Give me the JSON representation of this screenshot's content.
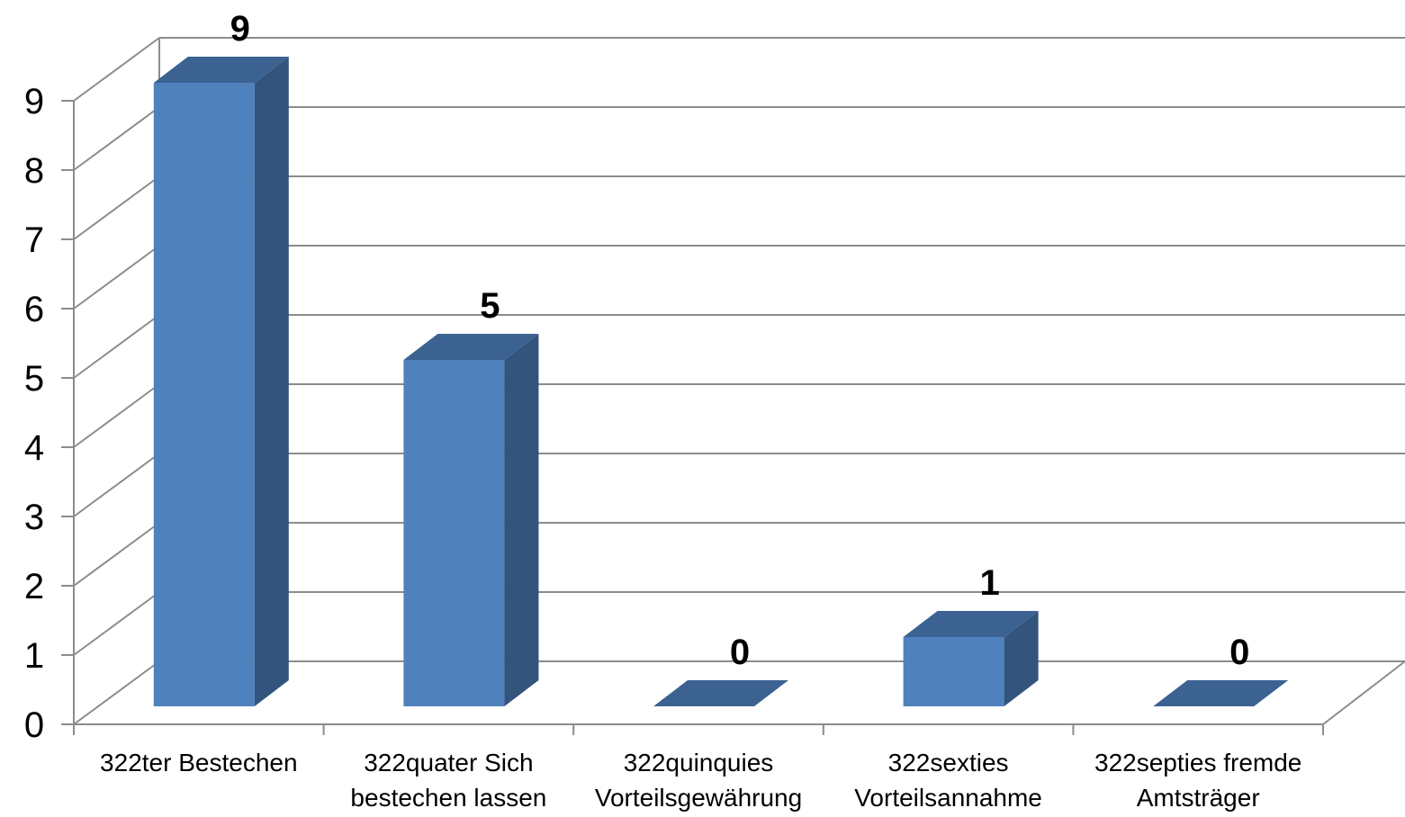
{
  "chart_data": {
    "type": "bar",
    "title": "",
    "xlabel": "",
    "ylabel": "",
    "categories": [
      [
        "322ter Bestechen"
      ],
      [
        "322quater Sich",
        "bestechen lassen"
      ],
      [
        "322quinquies",
        "Vorteilsgewährung"
      ],
      [
        "322sexties",
        "Vorteilsannahme"
      ],
      [
        "322septies fremde",
        "Amtsträger"
      ]
    ],
    "values": [
      9,
      5,
      0,
      1,
      0
    ],
    "data_labels": [
      "9",
      "5",
      "0",
      "1",
      "0"
    ],
    "ylim": [
      0,
      9
    ],
    "yticks": [
      "0",
      "1",
      "2",
      "3",
      "4",
      "5",
      "6",
      "7",
      "8",
      "9"
    ],
    "grid": true,
    "legend": "none",
    "style": "3d-column",
    "colors": {
      "bar_front": "#4F81BD",
      "bar_side": "#32547D",
      "bar_top": "#3C6292",
      "grid": "#8C8C8C"
    }
  }
}
